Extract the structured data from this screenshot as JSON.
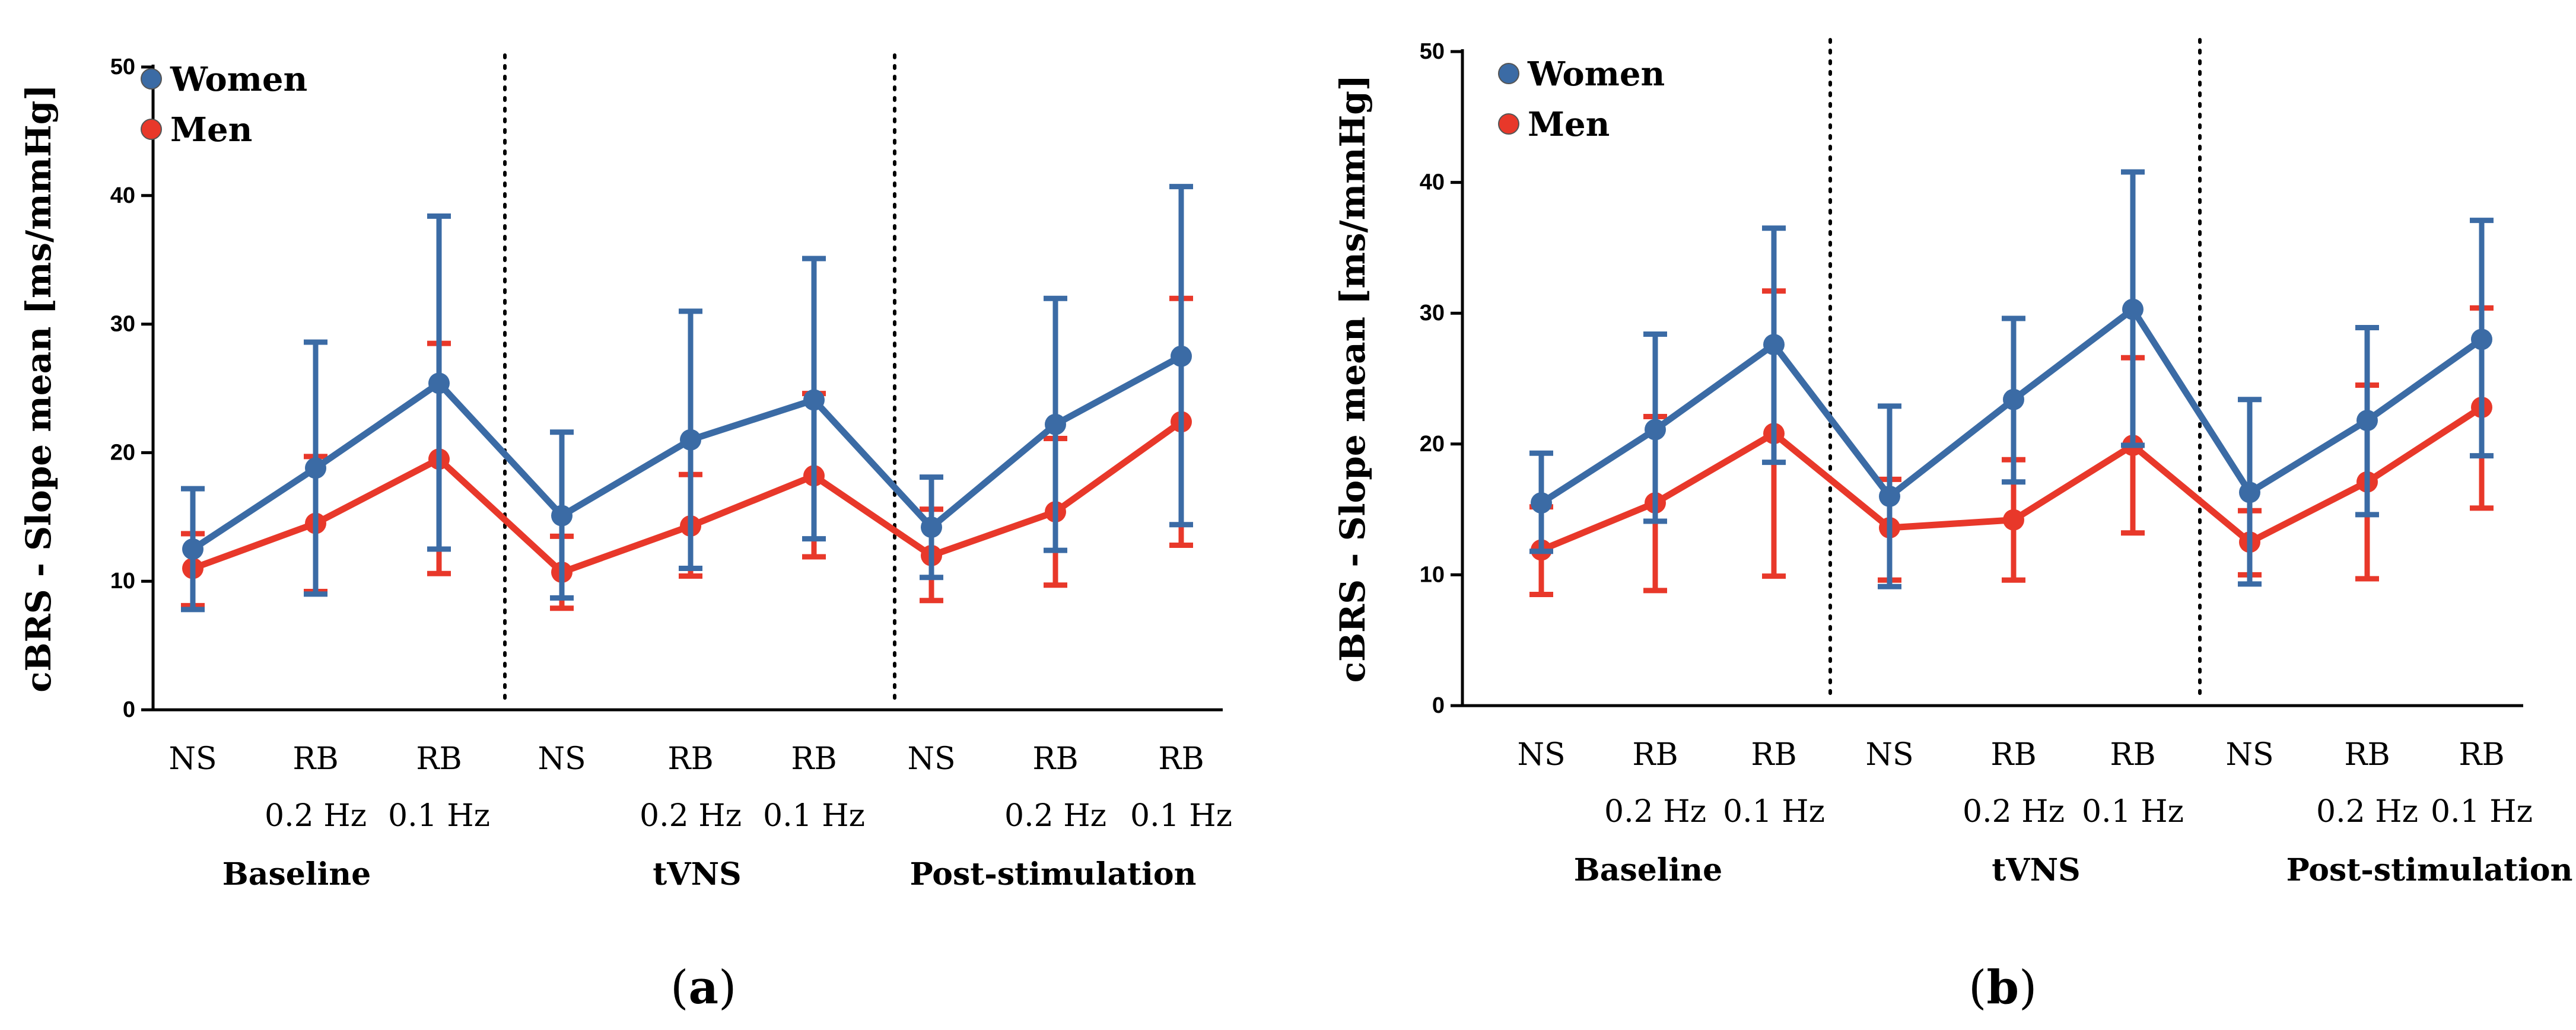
{
  "colors": {
    "women": "#3b6ba5",
    "men": "#e8382a",
    "axis": "#000000"
  },
  "chart_data": [
    {
      "type": "line",
      "panel_label": "a",
      "ylabel": "cBRS - Slope mean [ms/mmHg]",
      "ylim": [
        0,
        50
      ],
      "yticks": [
        0,
        10,
        20,
        30,
        40,
        50
      ],
      "grid": false,
      "legend": {
        "placement": "top-left",
        "entries": [
          "Women",
          "Men"
        ]
      },
      "categories": [
        [
          "NS"
        ],
        [
          "RB",
          "0.2 Hz"
        ],
        [
          "RB",
          "0.1 Hz"
        ],
        [
          "NS"
        ],
        [
          "RB",
          "0.2 Hz"
        ],
        [
          "RB",
          "0.1 Hz"
        ],
        [
          "NS"
        ],
        [
          "RB",
          "0.2 Hz"
        ],
        [
          "RB",
          "0.1 Hz"
        ]
      ],
      "groups": [
        "Baseline",
        "tVNS",
        "Post-stimulation"
      ],
      "series": [
        {
          "name": "Women",
          "color": "#3b6ba5",
          "values": [
            12.5,
            18.8,
            25.4,
            15.1,
            21.0,
            24.1,
            14.2,
            22.2,
            27.5
          ],
          "lower": [
            7.8,
            9.0,
            12.5,
            8.7,
            11.0,
            13.3,
            10.3,
            12.4,
            14.4
          ],
          "upper": [
            17.2,
            28.6,
            38.4,
            21.6,
            31.0,
            35.1,
            18.1,
            32.0,
            40.7
          ]
        },
        {
          "name": "Men",
          "color": "#e8382a",
          "values": [
            11.0,
            14.5,
            19.5,
            10.7,
            14.3,
            18.2,
            12.0,
            15.4,
            22.4
          ],
          "lower": [
            8.1,
            9.2,
            10.6,
            7.9,
            10.4,
            11.9,
            8.5,
            9.7,
            12.8
          ],
          "upper": [
            13.7,
            19.7,
            28.5,
            13.5,
            18.3,
            24.6,
            15.6,
            21.1,
            32.0
          ]
        }
      ]
    },
    {
      "type": "line",
      "panel_label": "b",
      "ylabel": "cBRS - Slope mean [ms/mmHg]",
      "ylim": [
        0,
        50
      ],
      "yticks": [
        0,
        10,
        20,
        30,
        40,
        50
      ],
      "grid": false,
      "legend": {
        "placement": "top-left",
        "entries": [
          "Women",
          "Men"
        ]
      },
      "categories": [
        [
          "NS"
        ],
        [
          "RB",
          "0.2 Hz"
        ],
        [
          "RB",
          "0.1 Hz"
        ],
        [
          "NS"
        ],
        [
          "RB",
          "0.2 Hz"
        ],
        [
          "RB",
          "0.1 Hz"
        ],
        [
          "NS"
        ],
        [
          "RB",
          "0.2 Hz"
        ],
        [
          "RB",
          "0.1 Hz"
        ]
      ],
      "groups": [
        "Baseline",
        "tVNS",
        "Post-stimulation"
      ],
      "series": [
        {
          "name": "Women",
          "color": "#3b6ba5",
          "values": [
            15.5,
            21.1,
            27.6,
            16.0,
            23.4,
            30.3,
            16.3,
            21.8,
            28.0
          ],
          "lower": [
            11.8,
            14.1,
            18.6,
            9.1,
            17.1,
            19.9,
            9.3,
            14.6,
            19.1
          ],
          "upper": [
            19.3,
            28.4,
            36.5,
            22.9,
            29.6,
            40.8,
            23.4,
            28.9,
            37.1
          ]
        },
        {
          "name": "Men",
          "color": "#e8382a",
          "values": [
            11.9,
            15.5,
            20.8,
            13.6,
            14.2,
            19.9,
            12.5,
            17.1,
            22.8
          ],
          "lower": [
            8.5,
            8.8,
            9.9,
            9.6,
            9.6,
            13.2,
            10.0,
            9.7,
            15.1
          ],
          "upper": [
            15.2,
            22.1,
            31.7,
            17.3,
            18.8,
            26.6,
            14.9,
            24.5,
            30.4
          ]
        }
      ]
    }
  ]
}
